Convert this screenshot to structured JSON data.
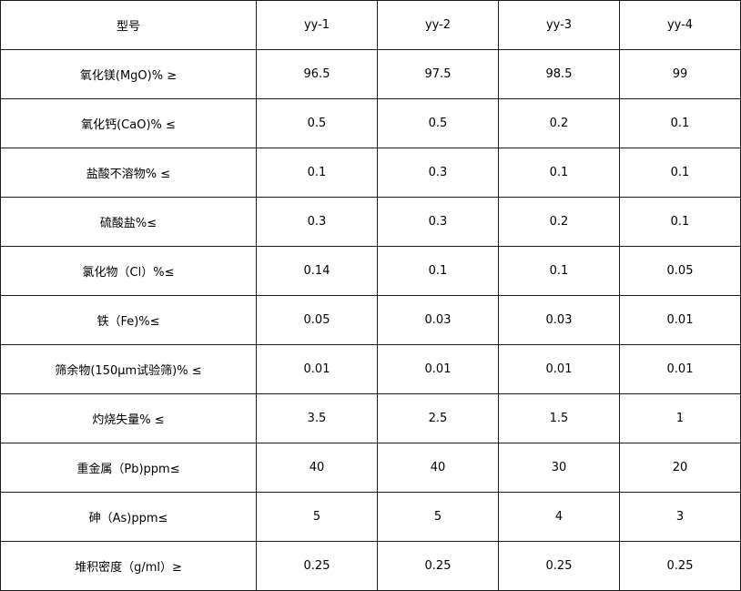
{
  "table": {
    "header": [
      "型号",
      "yy-1",
      "yy-2",
      "yy-3",
      "yy-4"
    ],
    "rows": [
      [
        "氧化镁(MgO)%  ≥",
        "96.5",
        "97.5",
        "98.5",
        "99"
      ],
      [
        "氧化钙(CaO)%  ≤",
        "0.5",
        "0.5",
        "0.2",
        "0.1"
      ],
      [
        "盐酸不溶物%  ≤",
        "0.1",
        "0.3",
        "0.1",
        "0.1"
      ],
      [
        "硫酸盐%≤",
        "0.3",
        "0.3",
        "0.2",
        "0.1"
      ],
      [
        "氯化物（Cl）%≤",
        "0.14",
        "0.1",
        "0.1",
        "0.05"
      ],
      [
        "铁（Fe)%≤",
        "0.05",
        "0.03",
        "0.03",
        "0.01"
      ],
      [
        "筛余物(150μm试验筛)%  ≤",
        "0.01",
        "0.01",
        "0.01",
        "0.01"
      ],
      [
        "灼烧失量%  ≤",
        "3.5",
        "2.5",
        "1.5",
        "1"
      ],
      [
        "重金属（Pb)ppm≤",
        "40",
        "40",
        "30",
        "20"
      ],
      [
        "砷（As)ppm≤",
        "5",
        "5",
        "4",
        "3"
      ],
      [
        "堆积密度（g/ml）≥",
        "0.25",
        "0.25",
        "0.25",
        "0.25"
      ]
    ]
  }
}
